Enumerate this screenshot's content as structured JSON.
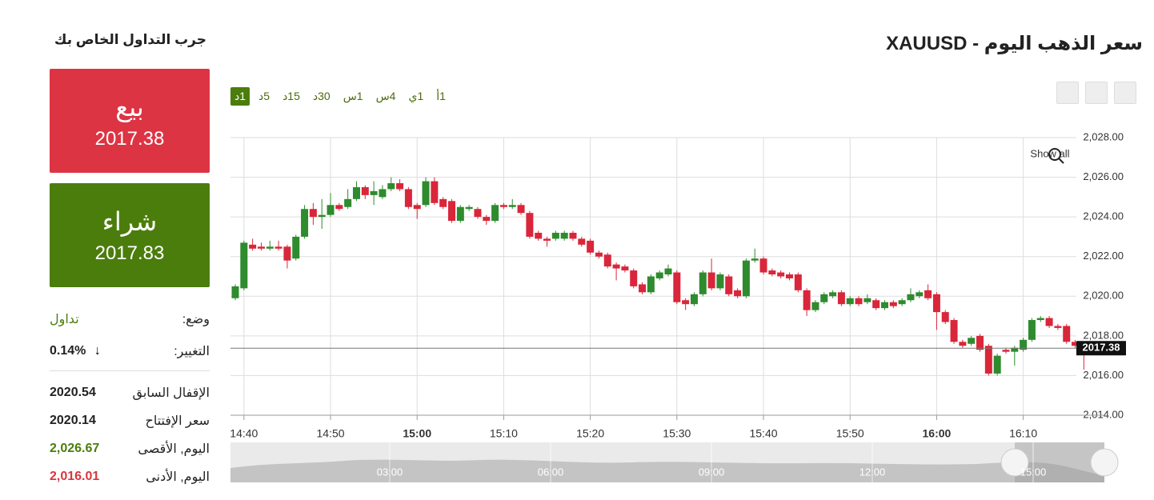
{
  "header": {
    "title": "سعر الذهب اليوم - XAUUSD"
  },
  "panel": {
    "title": "جرب التداول الخاص بك",
    "sell": {
      "label": "بيع",
      "price": "2017.38"
    },
    "buy": {
      "label": "شراء",
      "price": "2017.83"
    },
    "status": {
      "label": "وضع:",
      "value": "تداول"
    },
    "change": {
      "label": "التغيير:",
      "value": "0.14%",
      "arrow": "↓"
    },
    "rows": [
      {
        "label": "الإقفال السابق",
        "value": "2020.54"
      },
      {
        "label": "سعر الإفتتاح",
        "value": "2020.14"
      },
      {
        "label": "اليوم, الأقصى",
        "value": "2,026.67"
      },
      {
        "label": "اليوم, الأدنى",
        "value": "2,016.01"
      }
    ]
  },
  "timeframes": {
    "items": [
      "1د",
      "5د",
      "15د",
      "30د",
      "1س",
      "4س",
      "1ي",
      "1أ"
    ],
    "selected": 0
  },
  "chart_data": {
    "type": "candlestick",
    "reset_label": "Show all",
    "ylim": [
      2014,
      2028
    ],
    "yticks": [
      {
        "value": 2014,
        "label": "2,014.00"
      },
      {
        "value": 2016,
        "label": "2,016.00"
      },
      {
        "value": 2018,
        "label": "2,018.00"
      },
      {
        "value": 2020,
        "label": "2,020.00"
      },
      {
        "value": 2022,
        "label": "2,022.00"
      },
      {
        "value": 2024,
        "label": "2,024.00"
      },
      {
        "value": 2026,
        "label": "2,026.00"
      },
      {
        "value": 2028,
        "label": "2,028.00"
      }
    ],
    "xticks": [
      "14:40",
      "14:50",
      "15:00",
      "15:10",
      "15:20",
      "15:30",
      "15:40",
      "15:50",
      "16:00",
      "16:10"
    ],
    "grid": true,
    "up_color": "#2e8b2e",
    "down_color": "#d9263a",
    "x": [
      "14:39",
      "14:40",
      "14:41",
      "14:42",
      "14:43",
      "14:44",
      "14:45",
      "14:46",
      "14:47",
      "14:48",
      "14:49",
      "14:50",
      "14:51",
      "14:52",
      "14:53",
      "14:54",
      "14:55",
      "14:56",
      "14:57",
      "14:58",
      "14:59",
      "15:00",
      "15:01",
      "15:02",
      "15:03",
      "15:04",
      "15:05",
      "15:06",
      "15:07",
      "15:08",
      "15:09",
      "15:10",
      "15:11",
      "15:12",
      "15:13",
      "15:14",
      "15:15",
      "15:16",
      "15:17",
      "15:18",
      "15:19",
      "15:20",
      "15:21",
      "15:22",
      "15:23",
      "15:24",
      "15:25",
      "15:26",
      "15:27",
      "15:28",
      "15:29",
      "15:30",
      "15:31",
      "15:32",
      "15:33",
      "15:34",
      "15:35",
      "15:36",
      "15:37",
      "15:38",
      "15:39",
      "15:40",
      "15:41",
      "15:42",
      "15:43",
      "15:44",
      "15:45",
      "15:46",
      "15:47",
      "15:48",
      "15:49",
      "15:50",
      "15:51",
      "15:52",
      "15:53",
      "15:54",
      "15:55",
      "15:56",
      "15:57",
      "15:58",
      "15:59",
      "16:00",
      "16:01",
      "16:02",
      "16:03",
      "16:04",
      "16:05",
      "16:06",
      "16:07",
      "16:08",
      "16:09",
      "16:10",
      "16:11",
      "16:12",
      "16:13",
      "16:14",
      "16:15",
      "16:16",
      "16:17"
    ],
    "candles": [
      [
        2019.9,
        2020.6,
        2019.8,
        2020.5
      ],
      [
        2020.4,
        2022.8,
        2020.3,
        2022.7
      ],
      [
        2022.6,
        2022.9,
        2022.3,
        2022.4
      ],
      [
        2022.5,
        2022.7,
        2022.3,
        2022.4
      ],
      [
        2022.4,
        2022.8,
        2022.3,
        2022.5
      ],
      [
        2022.5,
        2022.8,
        2022.3,
        2022.4
      ],
      [
        2022.5,
        2022.6,
        2021.4,
        2021.8
      ],
      [
        2021.9,
        2023.1,
        2021.8,
        2023.0
      ],
      [
        2023.0,
        2024.6,
        2022.9,
        2024.4
      ],
      [
        2024.4,
        2024.7,
        2023.6,
        2024.0
      ],
      [
        2024.0,
        2024.9,
        2023.4,
        2024.1
      ],
      [
        2024.1,
        2025.2,
        2024.0,
        2024.6
      ],
      [
        2024.6,
        2024.7,
        2024.3,
        2024.4
      ],
      [
        2024.5,
        2025.4,
        2024.4,
        2024.9
      ],
      [
        2024.9,
        2025.8,
        2024.8,
        2025.5
      ],
      [
        2025.5,
        2025.6,
        2024.9,
        2025.1
      ],
      [
        2025.1,
        2025.8,
        2024.6,
        2025.3
      ],
      [
        2025.0,
        2025.6,
        2024.9,
        2025.4
      ],
      [
        2025.4,
        2026.0,
        2025.3,
        2025.7
      ],
      [
        2025.7,
        2025.9,
        2025.3,
        2025.4
      ],
      [
        2025.4,
        2025.5,
        2024.4,
        2024.5
      ],
      [
        2024.6,
        2024.7,
        2023.9,
        2024.4
      ],
      [
        2024.6,
        2026.0,
        2024.5,
        2025.8
      ],
      [
        2025.8,
        2026.0,
        2024.6,
        2024.7
      ],
      [
        2024.9,
        2025.0,
        2024.4,
        2024.5
      ],
      [
        2024.8,
        2024.9,
        2023.7,
        2023.8
      ],
      [
        2023.8,
        2024.6,
        2023.7,
        2024.5
      ],
      [
        2024.4,
        2024.6,
        2024.3,
        2024.5
      ],
      [
        2024.4,
        2024.5,
        2023.9,
        2024.0
      ],
      [
        2024.0,
        2024.1,
        2023.6,
        2023.8
      ],
      [
        2023.8,
        2024.7,
        2023.7,
        2024.6
      ],
      [
        2024.6,
        2024.7,
        2024.4,
        2024.5
      ],
      [
        2024.5,
        2024.9,
        2024.4,
        2024.6
      ],
      [
        2024.6,
        2024.7,
        2024.1,
        2024.2
      ],
      [
        2024.2,
        2024.3,
        2022.9,
        2023.0
      ],
      [
        2023.2,
        2023.3,
        2022.8,
        2022.9
      ],
      [
        2022.9,
        2023.0,
        2022.5,
        2022.8
      ],
      [
        2022.9,
        2023.3,
        2022.8,
        2023.2
      ],
      [
        2022.9,
        2023.3,
        2022.8,
        2023.2
      ],
      [
        2023.2,
        2023.3,
        2022.8,
        2022.9
      ],
      [
        2022.9,
        2023.0,
        2022.5,
        2022.6
      ],
      [
        2022.8,
        2022.9,
        2022.1,
        2022.2
      ],
      [
        2022.2,
        2022.3,
        2021.9,
        2022.0
      ],
      [
        2022.1,
        2022.2,
        2021.4,
        2021.5
      ],
      [
        2021.6,
        2021.7,
        2020.8,
        2021.4
      ],
      [
        2021.5,
        2021.6,
        2021.2,
        2021.3
      ],
      [
        2021.3,
        2021.4,
        2020.4,
        2020.5
      ],
      [
        2020.6,
        2020.7,
        2020.1,
        2020.2
      ],
      [
        2020.2,
        2021.1,
        2020.1,
        2021.0
      ],
      [
        2020.9,
        2021.3,
        2020.8,
        2021.2
      ],
      [
        2021.1,
        2021.6,
        2021.0,
        2021.4
      ],
      [
        2021.2,
        2021.3,
        2019.6,
        2019.7
      ],
      [
        2019.8,
        2019.9,
        2019.3,
        2019.6
      ],
      [
        2019.6,
        2020.2,
        2019.5,
        2020.1
      ],
      [
        2020.1,
        2021.3,
        2020.0,
        2021.2
      ],
      [
        2021.2,
        2021.9,
        2020.3,
        2020.4
      ],
      [
        2020.4,
        2021.2,
        2020.3,
        2021.1
      ],
      [
        2021.0,
        2021.1,
        2020.0,
        2020.1
      ],
      [
        2020.3,
        2020.4,
        2019.9,
        2020.0
      ],
      [
        2020.0,
        2021.9,
        2019.9,
        2021.8
      ],
      [
        2021.8,
        2022.4,
        2021.7,
        2021.9
      ],
      [
        2021.9,
        2022.0,
        2021.1,
        2021.2
      ],
      [
        2021.3,
        2021.4,
        2021.0,
        2021.1
      ],
      [
        2021.2,
        2021.3,
        2020.9,
        2021.0
      ],
      [
        2021.1,
        2021.2,
        2020.8,
        2020.9
      ],
      [
        2021.1,
        2021.2,
        2020.2,
        2020.3
      ],
      [
        2020.3,
        2020.4,
        2019.0,
        2019.3
      ],
      [
        2019.3,
        2019.8,
        2019.2,
        2019.7
      ],
      [
        2019.7,
        2020.2,
        2019.6,
        2020.1
      ],
      [
        2020.0,
        2020.3,
        2019.9,
        2020.2
      ],
      [
        2020.2,
        2020.3,
        2019.5,
        2019.6
      ],
      [
        2019.6,
        2020.0,
        2019.5,
        2019.9
      ],
      [
        2019.9,
        2020.0,
        2019.5,
        2019.6
      ],
      [
        2019.7,
        2020.1,
        2019.6,
        2019.9
      ],
      [
        2019.8,
        2019.9,
        2019.3,
        2019.4
      ],
      [
        2019.4,
        2019.8,
        2019.3,
        2019.7
      ],
      [
        2019.7,
        2019.8,
        2019.4,
        2019.5
      ],
      [
        2019.6,
        2019.9,
        2019.5,
        2019.8
      ],
      [
        2019.8,
        2020.4,
        2019.7,
        2020.1
      ],
      [
        2020.0,
        2020.3,
        2019.9,
        2020.2
      ],
      [
        2020.3,
        2020.6,
        2019.8,
        2019.9
      ],
      [
        2020.1,
        2020.2,
        2018.3,
        2019.2
      ],
      [
        2019.2,
        2019.3,
        2018.6,
        2018.7
      ],
      [
        2018.8,
        2018.9,
        2017.6,
        2017.7
      ],
      [
        2017.7,
        2017.8,
        2017.4,
        2017.5
      ],
      [
        2017.6,
        2018.0,
        2017.5,
        2017.9
      ],
      [
        2018.0,
        2018.1,
        2017.2,
        2017.3
      ],
      [
        2017.5,
        2017.6,
        2016.0,
        2016.1
      ],
      [
        2016.1,
        2017.1,
        2016.0,
        2017.0
      ],
      [
        2017.3,
        2017.4,
        2017.1,
        2017.2
      ],
      [
        2017.2,
        2017.5,
        2016.5,
        2017.4
      ],
      [
        2017.3,
        2017.9,
        2017.2,
        2017.8
      ],
      [
        2017.8,
        2018.9,
        2017.7,
        2018.8
      ],
      [
        2018.8,
        2019.0,
        2018.7,
        2018.9
      ],
      [
        2018.9,
        2019.0,
        2018.4,
        2018.5
      ],
      [
        2018.5,
        2018.6,
        2018.3,
        2018.4
      ],
      [
        2018.5,
        2018.6,
        2017.6,
        2017.7
      ],
      [
        2017.7,
        2017.8,
        2017.4,
        2017.5
      ],
      [
        2017.6,
        2017.7,
        2016.3,
        2017.38
      ]
    ]
  },
  "navigator": {
    "labels": [
      "03:00",
      "06:00",
      "09:00",
      "12:00",
      "15:00"
    ]
  }
}
